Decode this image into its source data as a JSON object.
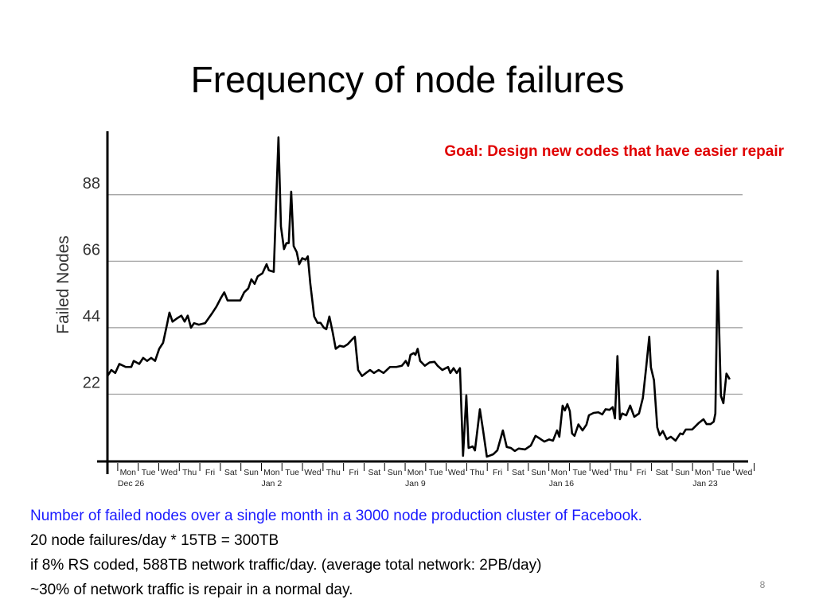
{
  "title": "Frequency of node failures",
  "chart_data": {
    "type": "line",
    "annotation": "Goal: Design new codes that have easier repair",
    "ylabel": "Failed Nodes",
    "categories": [
      "Mon",
      "Tue",
      "Wed",
      "Thu",
      "Fri",
      "Sat",
      "Sun",
      "Mon",
      "Tue",
      "Wed",
      "Thu",
      "Fri",
      "Sat",
      "Sun",
      "Mon",
      "Tue",
      "Wed",
      "Thu",
      "Fri",
      "Sat",
      "Sun",
      "Mon",
      "Tue",
      "Wed",
      "Thu",
      "Fri",
      "Sat",
      "Sun",
      "Mon",
      "Tue",
      "Wed"
    ],
    "date_labels": [
      "Dec 26",
      null,
      null,
      null,
      null,
      null,
      null,
      "Jan 2",
      null,
      null,
      null,
      null,
      null,
      null,
      "Jan 9",
      null,
      null,
      null,
      null,
      null,
      null,
      "Jan 16",
      null,
      null,
      null,
      null,
      null,
      null,
      "Jan 23",
      null,
      null
    ],
    "x": [
      -0.5,
      -0.31,
      -0.12,
      0.08,
      0.39,
      0.66,
      0.78,
      1.05,
      1.24,
      1.43,
      1.63,
      1.82,
      2.02,
      2.21,
      2.4,
      2.52,
      2.67,
      2.87,
      3.1,
      3.26,
      3.41,
      3.57,
      3.72,
      3.95,
      4.26,
      4.57,
      4.81,
      5.04,
      5.19,
      5.35,
      5.58,
      5.81,
      5.97,
      6.16,
      6.36,
      6.51,
      6.67,
      6.82,
      7.05,
      7.25,
      7.36,
      7.6,
      7.71,
      7.83,
      7.95,
      8.1,
      8.22,
      8.33,
      8.45,
      8.57,
      8.72,
      8.84,
      8.99,
      9.15,
      9.26,
      9.38,
      9.57,
      9.73,
      9.88,
      10.04,
      10.16,
      10.31,
      10.47,
      10.62,
      10.81,
      11.01,
      11.2,
      11.4,
      11.55,
      11.71,
      11.9,
      12.09,
      12.29,
      12.48,
      12.71,
      12.95,
      13.26,
      13.57,
      13.84,
      14.03,
      14.15,
      14.26,
      14.42,
      14.5,
      14.61,
      14.73,
      14.96,
      15.19,
      15.43,
      15.58,
      15.81,
      16.09,
      16.2,
      16.36,
      16.51,
      16.67,
      16.82,
      16.98,
      17.09,
      17.29,
      17.4,
      17.64,
      17.79,
      17.98,
      18.29,
      18.49,
      18.76,
      18.95,
      19.15,
      19.34,
      19.53,
      19.84,
      20.12,
      20.35,
      20.54,
      20.78,
      21.01,
      21.2,
      21.4,
      21.51,
      21.67,
      21.78,
      21.9,
      22.02,
      22.13,
      22.25,
      22.44,
      22.64,
      22.83,
      22.95,
      23.18,
      23.41,
      23.6,
      23.76,
      23.95,
      24.11,
      24.22,
      24.34,
      24.46,
      24.57,
      24.77,
      24.96,
      25.16,
      25.39,
      25.58,
      25.74,
      25.89,
      25.97,
      26.12,
      26.28,
      26.4,
      26.55,
      26.74,
      26.94,
      27.17,
      27.4,
      27.52,
      27.67,
      27.98,
      28.29,
      28.53,
      28.68,
      28.88,
      29.03,
      29.11,
      29.22,
      29.38,
      29.5,
      29.65,
      29.81
    ],
    "series": [
      {
        "color": "#000000",
        "values": [
          28,
          30,
          29,
          32,
          31,
          31,
          33,
          32,
          34,
          33,
          34,
          33,
          37,
          39,
          45,
          49,
          46,
          47,
          48,
          46,
          48,
          44,
          45.5,
          45,
          45.5,
          48.5,
          51,
          54,
          55.7,
          53,
          53,
          53,
          53,
          55.7,
          57,
          60,
          58.5,
          61,
          62,
          65,
          63,
          62.5,
          84,
          107,
          77.5,
          70,
          72,
          72,
          89,
          71,
          69,
          65,
          67,
          66.5,
          67.6,
          58.6,
          47.7,
          45.6,
          45.6,
          44,
          43.5,
          47.7,
          42.5,
          37,
          38,
          37.7,
          38.5,
          40,
          41,
          30,
          28,
          29,
          30,
          29,
          30,
          29,
          31,
          31,
          31.4,
          33,
          31.4,
          35,
          35.6,
          35,
          37,
          33,
          31.4,
          32.5,
          32.7,
          31.4,
          30,
          31,
          29,
          30.6,
          29,
          30.6,
          1.6,
          21.6,
          4.2,
          4.7,
          3.4,
          17,
          10.3,
          1.3,
          2.1,
          3.4,
          10,
          4.5,
          4.2,
          3.2,
          4,
          3.7,
          5,
          8.2,
          7.4,
          6.3,
          7,
          6.6,
          10,
          7.9,
          18.2,
          16.6,
          18.7,
          16.4,
          9,
          8.2,
          12,
          10,
          11.9,
          15,
          15.8,
          16,
          15.3,
          17,
          16.8,
          17.7,
          14,
          34.6,
          13.7,
          15.6,
          15,
          18.2,
          14.5,
          15.6,
          20.8,
          30.9,
          41,
          30.9,
          26.6,
          11,
          8.4,
          9.8,
          7.1,
          7.9,
          6.6,
          9,
          8.7,
          10.3,
          10.3,
          12.4,
          13.7,
          12.1,
          12.1,
          12.9,
          15.6,
          62.8,
          21.4,
          19,
          28.8,
          26.9
        ]
      }
    ],
    "xlim": [
      -0.5,
      30.9
    ],
    "ylim": [
      0,
      109
    ],
    "yticks": [
      22,
      44,
      66,
      88
    ],
    "grid": true
  },
  "notes": [
    "Number of failed nodes over a single month in a 3000 node production cluster of Facebook.",
    "20 node failures/day * 15TB = 300TB",
    "if 8% RS coded, 588TB network traffic/day. (average total network: 2PB/day)",
    "~30% of network traffic is repair in a normal day."
  ],
  "page_number": "8"
}
